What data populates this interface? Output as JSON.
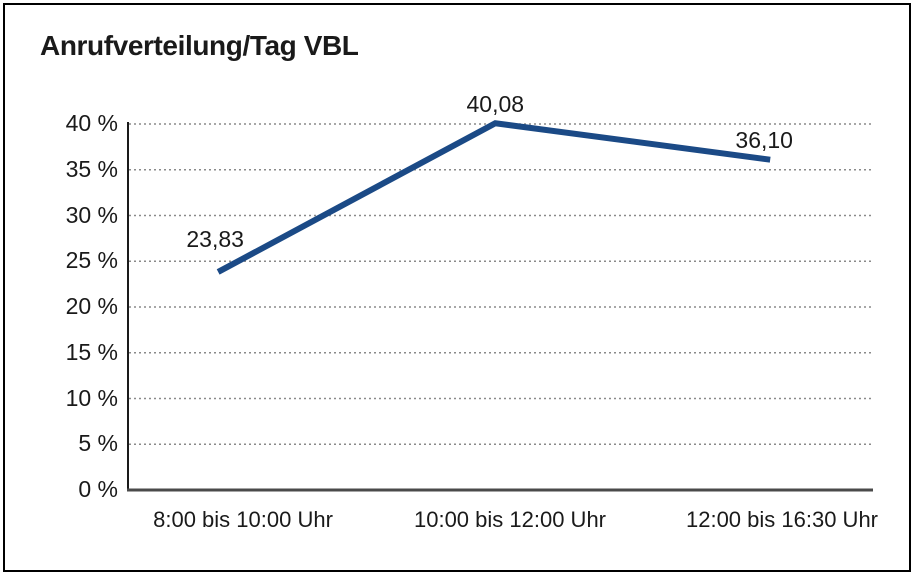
{
  "chart_data": {
    "type": "line",
    "title": "Anrufverteilung/Tag VBL",
    "categories": [
      "8:00 bis 10:00 Uhr",
      "10:00 bis 12:00 Uhr",
      "12:00 bis 16:30 Uhr"
    ],
    "values": [
      23.83,
      40.08,
      36.1
    ],
    "value_labels": [
      "23,83",
      "40,08",
      "36,10"
    ],
    "xlabel": "",
    "ylabel": "",
    "ylim": [
      0,
      40
    ],
    "ytick_step": 5,
    "ytick_labels": [
      "0 %",
      "5 %",
      "10 %",
      "15 %",
      "20 %",
      "25 %",
      "30 %",
      "35 %",
      "40 %"
    ],
    "grid": "horizontal-dotted",
    "legend": "none",
    "line_color": "#1b4a86",
    "gridline_color": "#8a8a8a",
    "axis_color": "#1a1a1a",
    "baseline_color": "#4a4a4a",
    "text_color": "#1a1a1a",
    "frame_color": "#000000"
  }
}
